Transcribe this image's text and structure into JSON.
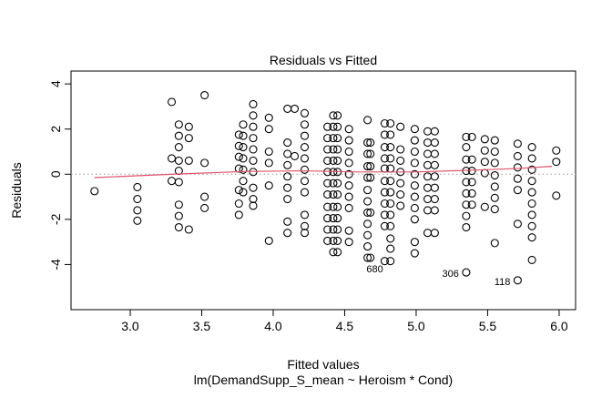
{
  "chart_data": {
    "type": "scatter",
    "title": "Residuals vs Fitted",
    "xlabel": "Fitted values",
    "subtitle": "lm(DemandSupp_S_mean ~ Heroism * Cond)",
    "ylabel": "Residuals",
    "xlim": [
      2.586,
      6.115
    ],
    "ylim": [
      -6.0,
      4.57
    ],
    "x_ticks": [
      3.0,
      3.5,
      4.0,
      4.5,
      5.0,
      5.5,
      6.0
    ],
    "x_tick_labels": [
      "3.0",
      "3.5",
      "4.0",
      "4.5",
      "5.0",
      "5.5",
      "6.0"
    ],
    "y_ticks": [
      -4,
      -2,
      0,
      2,
      4
    ],
    "y_tick_labels": [
      "-4",
      "-2",
      "0",
      "2",
      "4"
    ],
    "grid": false,
    "reference_line": 0,
    "colors": {
      "smooth": "#DF536B",
      "points": "#000000",
      "refline": "#999999"
    },
    "columns": [
      {
        "x": 2.75,
        "y": [
          -0.75
        ]
      },
      {
        "x": 3.05,
        "y": [
          -0.57,
          -1.1,
          -1.6,
          -2.06
        ]
      },
      {
        "x": 3.29,
        "y": [
          3.2,
          0.7,
          -0.3
        ]
      },
      {
        "x": 3.34,
        "y": [
          2.2,
          1.7,
          1.2,
          0.6,
          0.15,
          -0.35,
          -1.35,
          -1.85,
          -2.35
        ]
      },
      {
        "x": 3.41,
        "y": [
          2.1,
          1.6,
          0.6,
          -2.45
        ]
      },
      {
        "x": 3.52,
        "y": [
          3.5,
          0.5,
          -1.0,
          -1.5
        ]
      },
      {
        "x": 3.76,
        "y": [
          1.75,
          1.25,
          0.77,
          0.25,
          -0.7,
          -1.3,
          -1.8
        ]
      },
      {
        "x": 3.79,
        "y": [
          2.2,
          1.7,
          1.2,
          0.7,
          0.2,
          -0.3,
          -0.8
        ]
      },
      {
        "x": 3.86,
        "y": [
          3.1,
          2.6,
          2.1,
          1.6,
          1.1,
          0.6,
          0.1,
          -0.6,
          -1.1,
          -1.4
        ]
      },
      {
        "x": 3.97,
        "y": [
          2.5,
          2.0,
          1.0,
          0.5,
          -0.5,
          -2.95
        ]
      },
      {
        "x": 4.1,
        "y": [
          2.9,
          1.4,
          0.9,
          0.4,
          -0.1,
          -0.6,
          -1.1,
          -2.1,
          -2.6
        ]
      },
      {
        "x": 4.15,
        "y": [
          2.9,
          0.8
        ]
      },
      {
        "x": 4.22,
        "y": [
          2.7,
          2.2,
          1.7,
          1.2,
          0.7,
          0.2,
          -0.3,
          -0.8,
          -1.8,
          -2.3,
          -2.6
        ]
      },
      {
        "x": 4.38,
        "y": [
          2.1,
          1.6,
          1.1,
          0.6,
          0.1,
          -0.4,
          -0.9,
          -1.45,
          -1.95,
          -2.45,
          -2.95
        ]
      },
      {
        "x": 4.42,
        "y": [
          2.6,
          2.1,
          1.6,
          1.1,
          0.6,
          0.1,
          -0.4,
          -0.9,
          -1.45,
          -1.95,
          -2.45,
          -2.95,
          -3.45
        ]
      },
      {
        "x": 4.45,
        "y": [
          2.6,
          2.1,
          1.6,
          1.1,
          0.6,
          0.1,
          -0.4,
          -0.9,
          -1.45,
          -1.95,
          -2.45,
          -2.95,
          -3.45
        ]
      },
      {
        "x": 4.53,
        "y": [
          2.0,
          1.5,
          1.0,
          0.5,
          0.0,
          -0.5,
          -1.0,
          -1.5,
          -2.5,
          -3.0
        ]
      },
      {
        "x": 4.66,
        "y": [
          2.4,
          1.4,
          0.9,
          0.35,
          -0.15,
          -0.7,
          -1.2,
          -1.7,
          -2.2,
          -2.7,
          -3.2,
          -3.7
        ]
      },
      {
        "x": 4.68,
        "y": [
          1.4,
          0.9,
          0.35,
          -0.15,
          -1.7,
          -3.7
        ]
      },
      {
        "x": 4.78,
        "y": [
          2.25,
          1.75,
          1.2,
          0.7,
          0.25,
          -0.3,
          -0.8,
          -1.3,
          -1.8,
          -2.3,
          -3.85
        ]
      },
      {
        "x": 4.82,
        "y": [
          2.25,
          1.75,
          1.2,
          0.7,
          0.25,
          -0.3,
          -0.8,
          -1.3,
          -1.8,
          -2.3,
          -2.85,
          -3.3,
          -3.85
        ]
      },
      {
        "x": 4.89,
        "y": [
          2.1,
          1.1,
          0.6,
          0.1,
          -0.4,
          -0.9,
          -1.4
        ]
      },
      {
        "x": 4.99,
        "y": [
          2.0,
          1.5,
          1.0,
          0.5,
          0.0,
          -0.5,
          -1.0,
          -1.5,
          -2.0,
          -3.0,
          -3.5
        ]
      },
      {
        "x": 5.08,
        "y": [
          1.9,
          1.4,
          0.9,
          0.4,
          -0.1,
          -0.6,
          -1.1,
          -1.6,
          -2.6
        ]
      },
      {
        "x": 5.13,
        "y": [
          1.9,
          1.4,
          0.9,
          0.4,
          -0.1,
          -0.6,
          -1.1,
          -1.6,
          -2.6
        ]
      },
      {
        "x": 5.35,
        "y": [
          1.65,
          1.2,
          0.65,
          0.15,
          -0.35,
          -0.85,
          -1.35,
          -1.85,
          -2.35,
          -4.35
        ]
      },
      {
        "x": 5.39,
        "y": [
          1.65,
          0.65,
          0.15,
          -0.35,
          -0.85,
          -1.35
        ]
      },
      {
        "x": 5.48,
        "y": [
          1.55,
          1.05,
          0.55,
          0.05,
          -1.45
        ]
      },
      {
        "x": 5.55,
        "y": [
          1.5,
          1.0,
          0.5,
          -0.05,
          -0.55,
          -1.05,
          -1.55,
          -3.05
        ]
      },
      {
        "x": 5.71,
        "y": [
          1.35,
          0.8,
          0.3,
          -0.2,
          -0.7,
          -2.2,
          -4.7
        ]
      },
      {
        "x": 5.81,
        "y": [
          1.2,
          0.7,
          0.2,
          -0.3,
          -0.8,
          -1.3,
          -1.8,
          -2.3,
          -2.8,
          -3.8
        ]
      },
      {
        "x": 5.98,
        "y": [
          1.05,
          0.55,
          -0.95
        ]
      }
    ],
    "smooth": {
      "x": [
        2.75,
        3.3,
        3.8,
        4.2,
        4.6,
        5.0,
        5.4,
        5.7,
        5.95
      ],
      "y": [
        -0.15,
        0.0,
        0.12,
        0.15,
        0.1,
        0.1,
        0.18,
        0.25,
        0.35
      ]
    },
    "annotations": [
      {
        "label": "680",
        "x": 4.66,
        "y": -3.7,
        "pos": "below"
      },
      {
        "label": "306",
        "x": 5.35,
        "y": -4.35,
        "pos": "left"
      },
      {
        "label": "118",
        "x": 5.71,
        "y": -4.7,
        "pos": "left"
      }
    ]
  }
}
